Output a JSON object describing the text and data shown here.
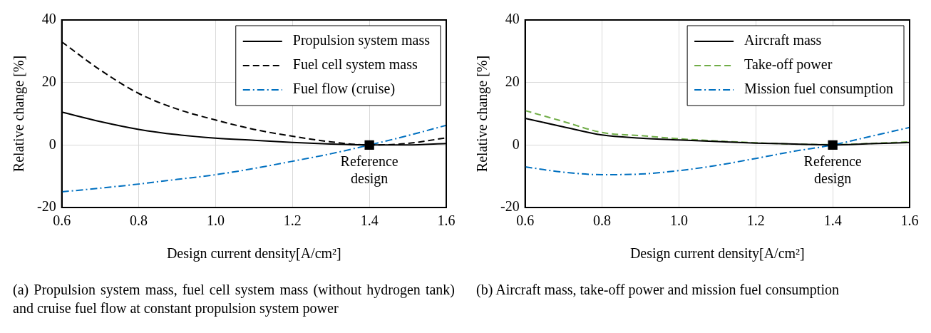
{
  "chart_data": [
    {
      "type": "line",
      "xlabel": "Design current density[A/cm²]",
      "ylabel": "Relative change [%]",
      "x": [
        0.6,
        0.7,
        0.8,
        0.9,
        1.0,
        1.1,
        1.2,
        1.3,
        1.4,
        1.5,
        1.6
      ],
      "series": [
        {
          "name": "Propulsion system mass",
          "color": "#000000",
          "line_style": "solid",
          "values": [
            10.5,
            7.5,
            5,
            3.3,
            2.2,
            1.5,
            0.8,
            0.3,
            0,
            0,
            0.5
          ]
        },
        {
          "name": "Fuel cell system mass",
          "color": "#000000",
          "line_style": "dashed",
          "values": [
            33,
            24,
            16.5,
            11.5,
            8,
            5,
            2.8,
            1,
            0,
            0.5,
            2.3
          ]
        },
        {
          "name": "Fuel flow (cruise)",
          "color": "#0070c0",
          "line_style": "dashdot",
          "values": [
            -15,
            -13.8,
            -12.5,
            -11,
            -9.5,
            -7.5,
            -5.2,
            -2.8,
            0,
            3,
            6.3
          ]
        },
        {
          "type": "scatter",
          "marker": "square",
          "color": "#000000",
          "x": [
            1.4
          ],
          "values": [
            0
          ]
        }
      ],
      "xlim": [
        0.6,
        1.6
      ],
      "xticks": [
        0.6,
        0.8,
        {
          "value": 1,
          "label": "1.0"
        },
        1.2,
        1.4,
        1.6
      ],
      "ylim": [
        -20,
        40
      ],
      "yticks": [
        -20,
        0,
        20,
        40
      ],
      "grid": true,
      "legend": "top right",
      "annotations": [
        {
          "text": "Reference design",
          "x": 1.4,
          "y": 0
        },
        "(a) Propulsion system mass, fuel cell system mass (without hydrogen tank) and cruise fuel flow at constant propulsion system power"
      ]
    },
    {
      "type": "line",
      "xlabel": "Design current density[A/cm²]",
      "ylabel": "Relative change [%]",
      "x": [
        0.6,
        0.7,
        0.8,
        0.9,
        1.0,
        1.1,
        1.2,
        1.3,
        1.4,
        1.5,
        1.6
      ],
      "series": [
        {
          "name": "Aircraft mass",
          "color": "#000000",
          "line_style": "solid",
          "values": [
            8.5,
            5.8,
            3.2,
            2.2,
            1.6,
            1.1,
            0.6,
            0.3,
            0,
            0.4,
            0.8
          ]
        },
        {
          "name": "Take-off power",
          "color": "#70ad47",
          "line_style": "dashed",
          "values": [
            11,
            7.5,
            4,
            3,
            2,
            1.3,
            0.7,
            0.3,
            0.1,
            0.5,
            1
          ]
        },
        {
          "name": "Mission fuel consumption",
          "color": "#0070c0",
          "line_style": "dashdot",
          "values": [
            -7,
            -8.7,
            -9.5,
            -9.3,
            -8.2,
            -6.5,
            -4.3,
            -2,
            0,
            2.8,
            5.6
          ]
        },
        {
          "type": "scatter",
          "marker": "square",
          "color": "#000000",
          "x": [
            1.4
          ],
          "values": [
            0
          ]
        }
      ],
      "xlim": [
        0.6,
        1.6
      ],
      "xticks": [
        0.6,
        0.8,
        {
          "value": 1,
          "label": "1.0"
        },
        1.2,
        1.4,
        1.6
      ],
      "ylim": [
        -20,
        40
      ],
      "yticks": [
        -20,
        0,
        20,
        40
      ],
      "grid": true,
      "legend": "top right",
      "annotations": [
        {
          "text": "Reference design",
          "x": 1.4,
          "y": 0
        },
        "(b) Aircraft mass, take-off power and mission fuel consumption"
      ]
    }
  ]
}
